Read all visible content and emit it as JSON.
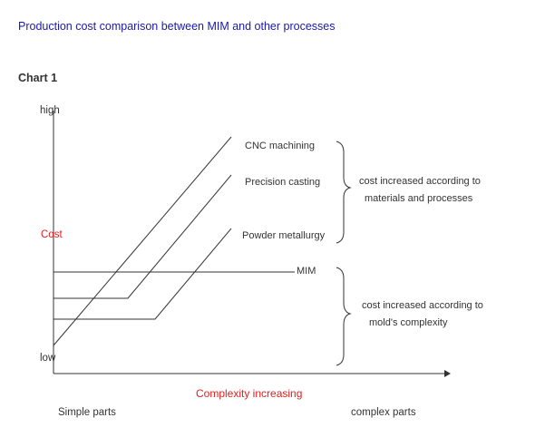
{
  "page_title": "Production cost comparison between MIM and other processes",
  "chart_label": "Chart 1",
  "colors": {
    "accent_red": "#e02020",
    "title_blue": "#1a1aa8",
    "ink": "#333333"
  },
  "chart_data": {
    "type": "line",
    "title": "",
    "xlabel": "Complexity increasing",
    "ylabel": "Cost",
    "y_tick_labels": {
      "high": "high",
      "low": "low"
    },
    "x_end_labels": {
      "left": "Simple parts",
      "right": "complex parts"
    },
    "series": [
      {
        "name": "CNC machining",
        "shape": "rising line from low cost at simplest parts"
      },
      {
        "name": "Precision casting",
        "shape": "flat low cost then rising"
      },
      {
        "name": "Powder metallurgy",
        "shape": "flat lower cost then rising"
      },
      {
        "name": "MIM",
        "shape": "flat constant cost"
      }
    ],
    "annotations": {
      "top_group": "cost increased according to materials and processes",
      "bottom_group": "cost increased according to mold's complexity"
    },
    "grid": false,
    "legend": "inline"
  }
}
